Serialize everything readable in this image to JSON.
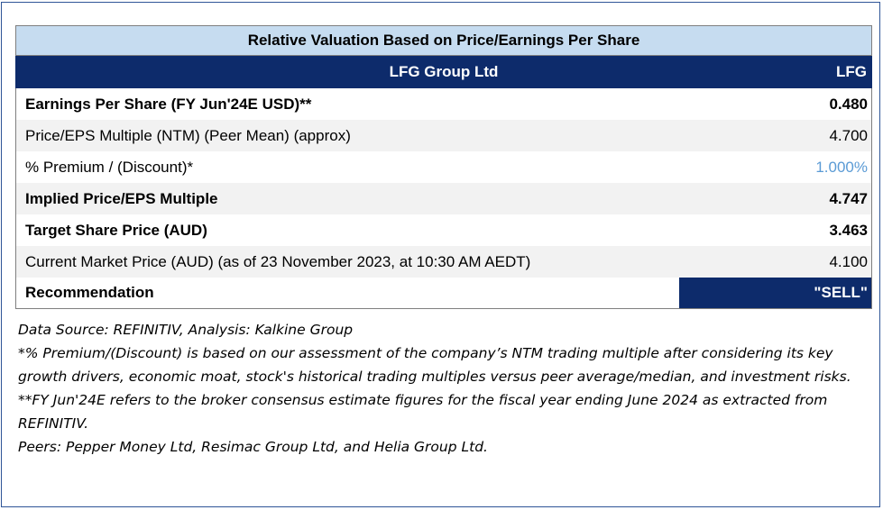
{
  "table": {
    "title": "Relative Valuation Based on Price/Earnings Per Share",
    "header": {
      "company": "LFG Group Ltd",
      "ticker": "LFG"
    },
    "rows": [
      {
        "label": "Earnings Per Share (FY Jun'24E USD)**",
        "value": "0.480"
      },
      {
        "label": "Price/EPS Multiple (NTM) (Peer Mean) (approx)",
        "value": "4.700"
      },
      {
        "label": "% Premium / (Discount)*",
        "value": "1.000%"
      },
      {
        "label": "Implied Price/EPS Multiple",
        "value": "4.747"
      },
      {
        "label": "Target Share Price (AUD)",
        "value": "3.463"
      },
      {
        "label": "Current Market Price (AUD) (as of 23 November 2023, at 10:30 AM AEDT)",
        "value": "4.100"
      }
    ],
    "recommendation": {
      "label": "Recommendation",
      "value": "\"SELL\""
    }
  },
  "notes": [
    "Data Source: REFINITIV, Analysis: Kalkine Group",
    "*% Premium/(Discount) is based on our assessment of the company’s NTM trading multiple after considering its key growth drivers, economic moat, stock's historical trading multiples versus peer average/median, and investment risks.",
    "**FY Jun'24E refers to the broker consensus estimate figures for the fiscal year ending June 2024 as extracted from REFINITIV.",
    "Peers: Pepper Money Ltd, Resimac Group Ltd, and Helia Group Ltd."
  ],
  "colors": {
    "title_bg": "#c6dcf0",
    "header_bg": "#0d2b6b",
    "premium_value": "#5b9bd5",
    "frame_border": "#2f5597"
  }
}
